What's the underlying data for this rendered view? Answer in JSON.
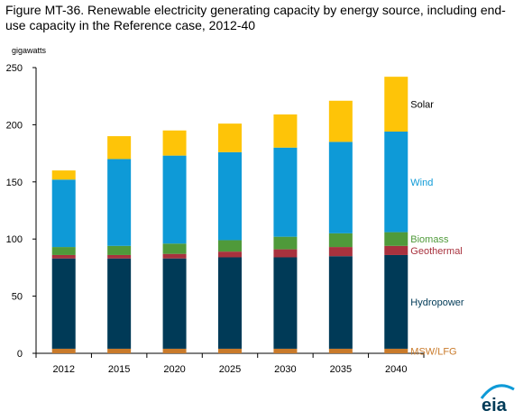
{
  "title": "Figure MT-36. Renewable electricity generating capacity by energy source, including end-use capacity in the Reference case, 2012-40",
  "logo_text": "eia",
  "chart_data": {
    "type": "bar",
    "stacked": true,
    "units": "gigawatts",
    "categories": [
      "2012",
      "2015",
      "2020",
      "2025",
      "2030",
      "2035",
      "2040"
    ],
    "ylim": [
      0,
      250
    ],
    "yticks": [
      0,
      50,
      100,
      150,
      200,
      250
    ],
    "grid": false,
    "legend": "labels at right of last bar",
    "series": [
      {
        "name": "MSW/LFG",
        "color": "#c97a2a",
        "values": [
          4,
          4,
          4,
          4,
          4,
          4,
          4
        ]
      },
      {
        "name": "Hydropower",
        "color": "#003a57",
        "values": [
          79,
          79,
          79,
          80,
          80,
          81,
          82
        ]
      },
      {
        "name": "Geothermal",
        "color": "#a8323e",
        "values": [
          3,
          3,
          4,
          5,
          7,
          8,
          8
        ]
      },
      {
        "name": "Biomass",
        "color": "#4f9a3a",
        "values": [
          7,
          8,
          9,
          10,
          11,
          12,
          12
        ]
      },
      {
        "name": "Wind",
        "color": "#0e9ad7",
        "values": [
          59,
          76,
          77,
          77,
          78,
          80,
          88
        ]
      },
      {
        "name": "Solar",
        "color": "#fec408",
        "values": [
          8,
          20,
          22,
          25,
          29,
          36,
          48
        ]
      }
    ],
    "label_colors": {
      "Solar": "#000000",
      "Wind": "#0e9ad7",
      "Biomass": "#4f9a3a",
      "Geothermal": "#a8323e",
      "Hydropower": "#003a57",
      "MSW/LFG": "#c97a2a"
    }
  }
}
